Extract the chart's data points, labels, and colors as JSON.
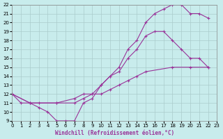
{
  "xlabel": "Windchill (Refroidissement éolien,°C)",
  "xlim": [
    0,
    23
  ],
  "ylim": [
    9,
    22
  ],
  "xticks": [
    0,
    1,
    2,
    3,
    4,
    5,
    6,
    7,
    8,
    9,
    10,
    11,
    12,
    13,
    14,
    15,
    16,
    17,
    18,
    19,
    20,
    21,
    22,
    23
  ],
  "yticks": [
    9,
    10,
    11,
    12,
    13,
    14,
    15,
    16,
    17,
    18,
    19,
    20,
    21,
    22
  ],
  "bg_color": "#c8ecec",
  "line_color": "#993399",
  "grid_color": "#aacccc",
  "curve1_x": [
    0,
    1,
    2,
    3,
    4,
    5,
    6,
    7,
    8,
    9,
    10,
    11,
    12,
    13,
    14,
    15,
    16,
    17,
    18,
    19,
    20,
    21,
    22
  ],
  "curve1_y": [
    12,
    11,
    11,
    10.5,
    10,
    9,
    9,
    9,
    11,
    11.5,
    13,
    14,
    15,
    17,
    18,
    20,
    21,
    21.5,
    22,
    22,
    21,
    21,
    20.5
  ],
  "curve2_x": [
    0,
    2,
    3,
    5,
    7,
    8,
    9,
    10,
    11,
    12,
    13,
    14,
    15,
    16,
    17,
    18,
    19,
    20,
    21,
    22
  ],
  "curve2_y": [
    12,
    11,
    11,
    11,
    11.5,
    12,
    12,
    13,
    14,
    14.5,
    16,
    17,
    18.5,
    19,
    19,
    18,
    17,
    16,
    16,
    15
  ],
  "curve3_x": [
    0,
    2,
    5,
    7,
    8,
    9,
    10,
    11,
    12,
    13,
    14,
    15,
    18,
    20,
    22
  ],
  "curve3_y": [
    12,
    11,
    11,
    11,
    11.5,
    12,
    12,
    12.5,
    13,
    13.5,
    14,
    14.5,
    15,
    15,
    15
  ]
}
